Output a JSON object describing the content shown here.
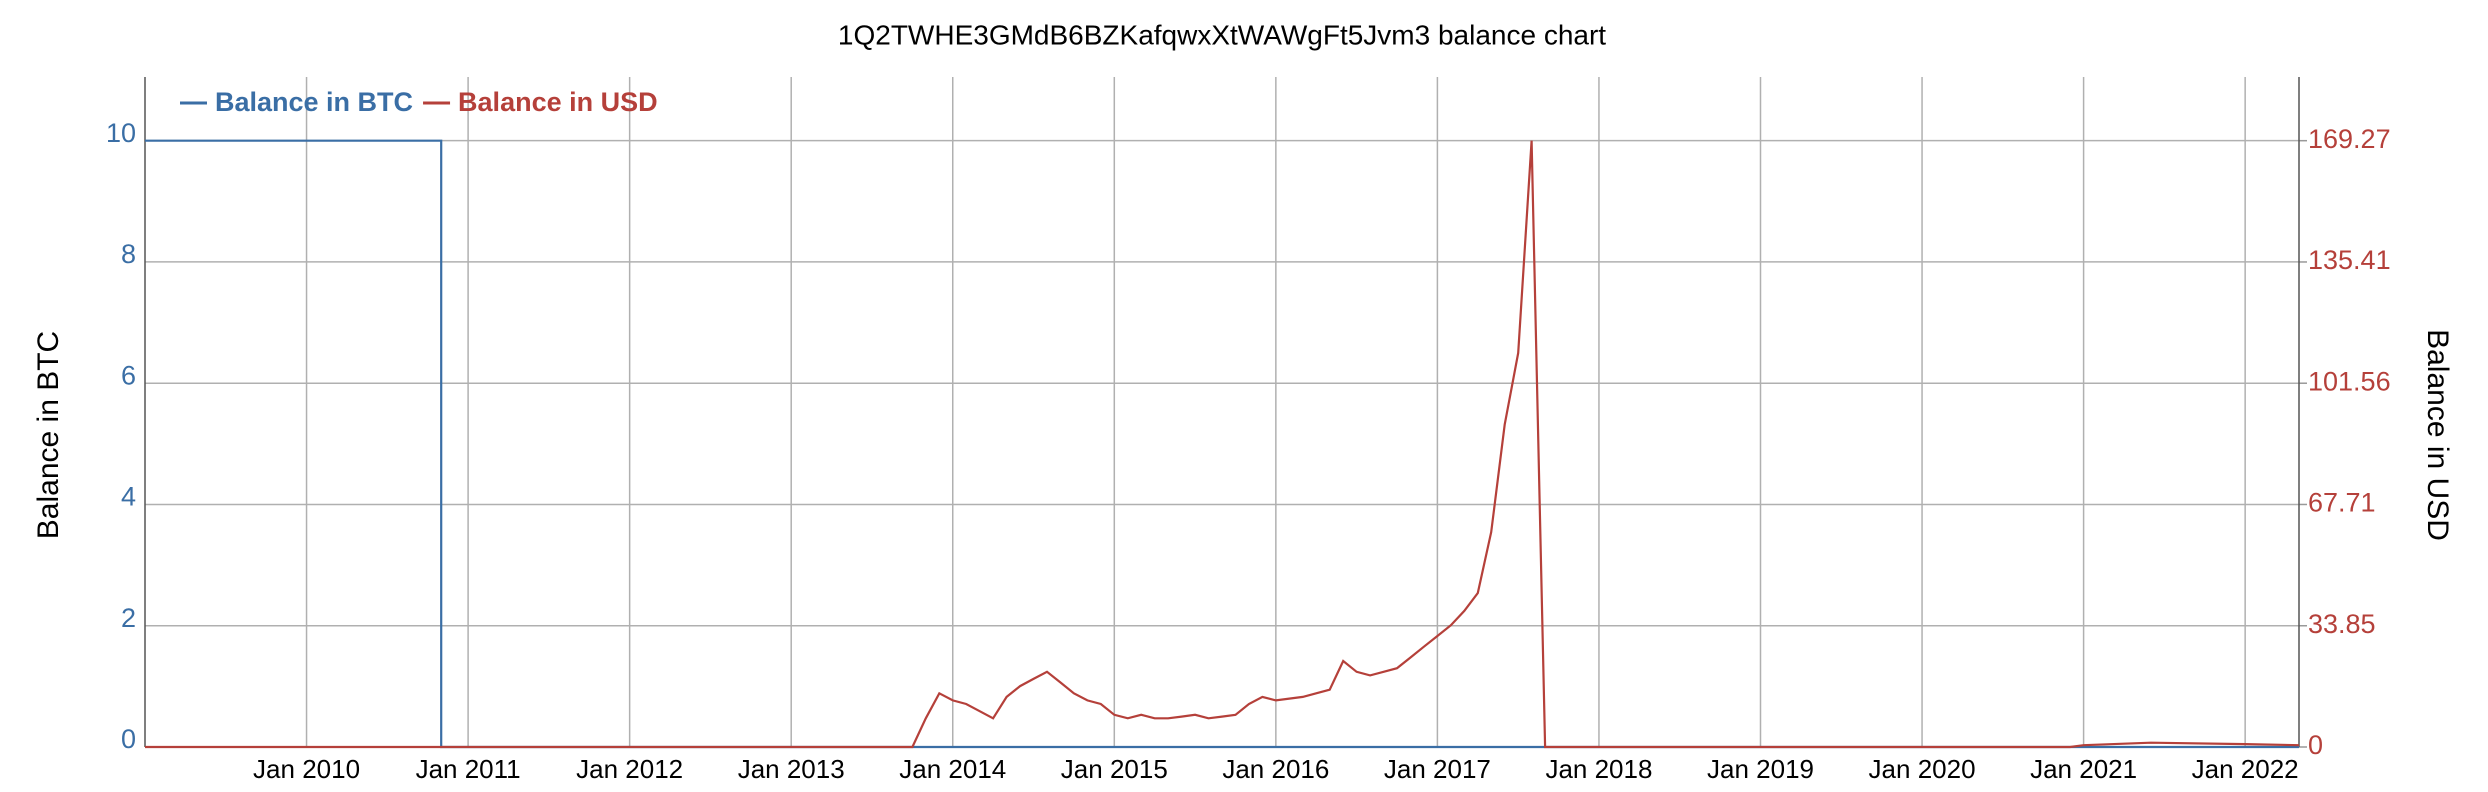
{
  "chart_data": {
    "type": "line",
    "title": "1Q2TWHE3GMdB6BZKafqwxXtWAWgFt5Jvm3 balance chart",
    "y_label": "Balance in BTC",
    "y2_label": "Balance in USD",
    "xlim": [
      "2009-01",
      "2022-05"
    ],
    "xticks": [
      {
        "value": "2010-01",
        "label": "Jan 2010"
      },
      {
        "value": "2011-01",
        "label": "Jan 2011"
      },
      {
        "value": "2012-01",
        "label": "Jan 2012"
      },
      {
        "value": "2013-01",
        "label": "Jan 2013"
      },
      {
        "value": "2014-01",
        "label": "Jan 2014"
      },
      {
        "value": "2015-01",
        "label": "Jan 2015"
      },
      {
        "value": "2016-01",
        "label": "Jan 2016"
      },
      {
        "value": "2017-01",
        "label": "Jan 2017"
      },
      {
        "value": "2018-01",
        "label": "Jan 2018"
      },
      {
        "value": "2019-01",
        "label": "Jan 2019"
      },
      {
        "value": "2020-01",
        "label": "Jan 2020"
      },
      {
        "value": "2021-01",
        "label": "Jan 2021"
      },
      {
        "value": "2022-01",
        "label": "Jan 2022"
      }
    ],
    "ylim": [
      0,
      11.05
    ],
    "yticks": [
      0,
      2,
      4,
      6,
      8,
      10
    ],
    "y2lim": [
      0,
      187.05
    ],
    "y2ticks": [
      0,
      33.85,
      67.71,
      101.56,
      135.41,
      169.27
    ],
    "grid": true,
    "legend": "top-left",
    "series": [
      {
        "name": "Balance in BTC",
        "color": "#3a6ea5",
        "x": [
          "2009-01",
          "2010-11",
          "2010-11",
          "2022-05"
        ],
        "values": [
          10,
          10,
          0,
          0
        ]
      },
      {
        "name": "Balance in USD",
        "color": "#b5403a",
        "axis": "y2",
        "x": [
          "2009-01",
          "2013-10",
          "2013-11",
          "2013-12",
          "2014-01",
          "2014-02",
          "2014-03",
          "2014-04",
          "2014-05",
          "2014-06",
          "2014-07",
          "2014-08",
          "2014-09",
          "2014-10",
          "2014-11",
          "2014-12",
          "2015-01",
          "2015-02",
          "2015-03",
          "2015-04",
          "2015-05",
          "2015-06",
          "2015-07",
          "2015-08",
          "2015-09",
          "2015-10",
          "2015-11",
          "2015-12",
          "2016-01",
          "2016-02",
          "2016-03",
          "2016-04",
          "2016-05",
          "2016-06",
          "2016-07",
          "2016-08",
          "2016-09",
          "2016-10",
          "2016-11",
          "2016-12",
          "2017-01",
          "2017-02",
          "2017-03",
          "2017-04",
          "2017-05",
          "2017-06",
          "2017-07",
          "2017-08",
          "2017-09",
          "2020-12",
          "2021-01",
          "2021-06",
          "2022-01",
          "2022-05"
        ],
        "values": [
          0,
          0,
          8,
          15,
          13,
          12,
          10,
          8,
          14,
          17,
          19,
          21,
          18,
          15,
          13,
          12,
          9,
          8,
          9,
          8,
          8,
          8.5,
          9,
          8,
          8.5,
          9,
          12,
          14,
          13,
          13.5,
          14,
          15,
          16,
          24,
          21,
          20,
          21,
          22,
          25,
          28,
          31,
          34,
          38,
          43,
          60,
          90,
          110,
          169.27,
          0,
          0,
          0.5,
          1.2,
          0.8,
          0.5
        ]
      }
    ]
  }
}
